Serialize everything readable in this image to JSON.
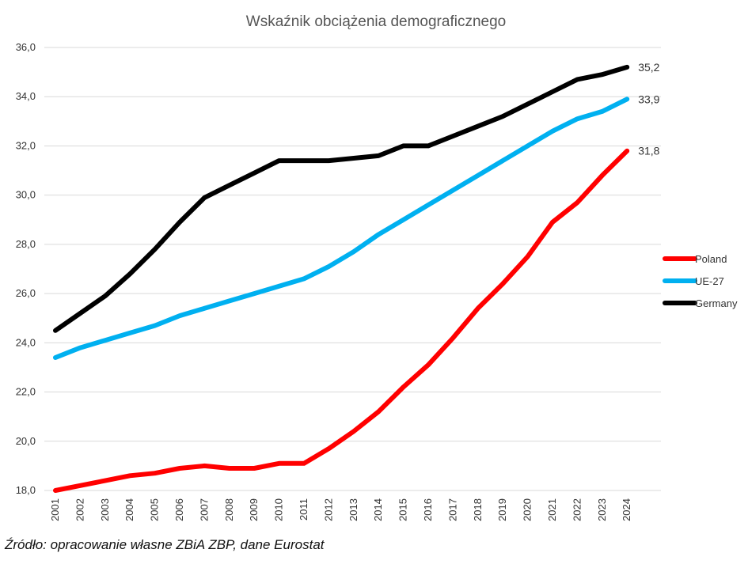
{
  "source_note": "Źródło: opracowanie własne ZBiA ZBP, dane Eurostat",
  "chart_data": {
    "type": "line",
    "title": "Wskaźnik obciążenia demograficznego",
    "xlabel": "",
    "ylabel": "",
    "ylim": [
      18,
      36
    ],
    "y_ticks": [
      "18,0",
      "20,0",
      "22,0",
      "24,0",
      "26,0",
      "28,0",
      "30,0",
      "32,0",
      "34,0",
      "36,0"
    ],
    "grid": "horizontal",
    "legend_position": "right",
    "categories": [
      "2001",
      "2002",
      "2003",
      "2004",
      "2005",
      "2006",
      "2007",
      "2008",
      "2009",
      "2010",
      "2011",
      "2012",
      "2013",
      "2014",
      "2015",
      "2016",
      "2017",
      "2018",
      "2019",
      "2020",
      "2021",
      "2022",
      "2023",
      "2024"
    ],
    "series": [
      {
        "name": "Poland",
        "color": "#ff0000",
        "values": [
          18.0,
          18.2,
          18.4,
          18.6,
          18.7,
          18.9,
          19.0,
          18.9,
          18.9,
          19.1,
          19.1,
          19.7,
          20.4,
          21.2,
          22.2,
          23.1,
          24.2,
          25.4,
          26.4,
          27.5,
          28.9,
          29.7,
          30.8,
          31.8
        ],
        "end_label": "31,8"
      },
      {
        "name": "UE-27",
        "color": "#00b0f0",
        "values": [
          23.4,
          23.8,
          24.1,
          24.4,
          24.7,
          25.1,
          25.4,
          25.7,
          26.0,
          26.3,
          26.6,
          27.1,
          27.7,
          28.4,
          29.0,
          29.6,
          30.2,
          30.8,
          31.4,
          32.0,
          32.6,
          33.1,
          33.4,
          33.9
        ],
        "end_label": "33,9"
      },
      {
        "name": "Germany",
        "color": "#000000",
        "values": [
          24.5,
          25.2,
          25.9,
          26.8,
          27.8,
          28.9,
          29.9,
          30.4,
          30.9,
          31.4,
          31.4,
          31.4,
          31.5,
          31.6,
          32.0,
          32.0,
          32.4,
          32.8,
          33.2,
          33.7,
          34.2,
          34.7,
          34.9,
          35.2
        ],
        "end_label": "35,2"
      }
    ]
  }
}
